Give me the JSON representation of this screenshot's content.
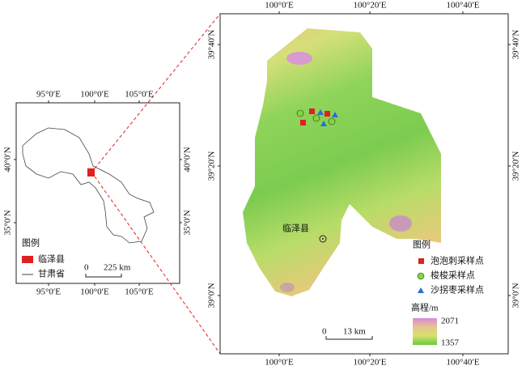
{
  "inset": {
    "top_ticks": [
      "95°0′E",
      "100°0′E",
      "105°0′E"
    ],
    "bottom_ticks": [
      "95°0′E",
      "100°0′E",
      "105°0′E"
    ],
    "left_ticks": [
      "40°0′N",
      "35°0′N"
    ],
    "right_ticks": [
      "40°0′N",
      "35°0′N"
    ],
    "legend": {
      "title": "图例",
      "items": [
        "临泽县",
        "甘肃省"
      ]
    },
    "scale": {
      "start": "0",
      "end": "225 km"
    }
  },
  "main": {
    "top_ticks": [
      "100°0′E",
      "100°20′E",
      "100°40′E"
    ],
    "bottom_ticks": [
      "100°0′E",
      "100°20′E",
      "100°40′E"
    ],
    "left_ticks": [
      "39°40′N",
      "39°20′N",
      "39°0′N"
    ],
    "right_ticks": [
      "39°40′N",
      "39°20′N",
      "39°0′N"
    ],
    "place_label": "临泽县",
    "legend": {
      "title": "图例",
      "items": [
        "泡泡刺采样点",
        "梭梭采样点",
        "沙拐枣采样点"
      ]
    },
    "elevation": {
      "title": "高程/m",
      "max": 2071,
      "min": 1357
    },
    "scale": {
      "start": "0",
      "end": "13 km"
    }
  }
}
